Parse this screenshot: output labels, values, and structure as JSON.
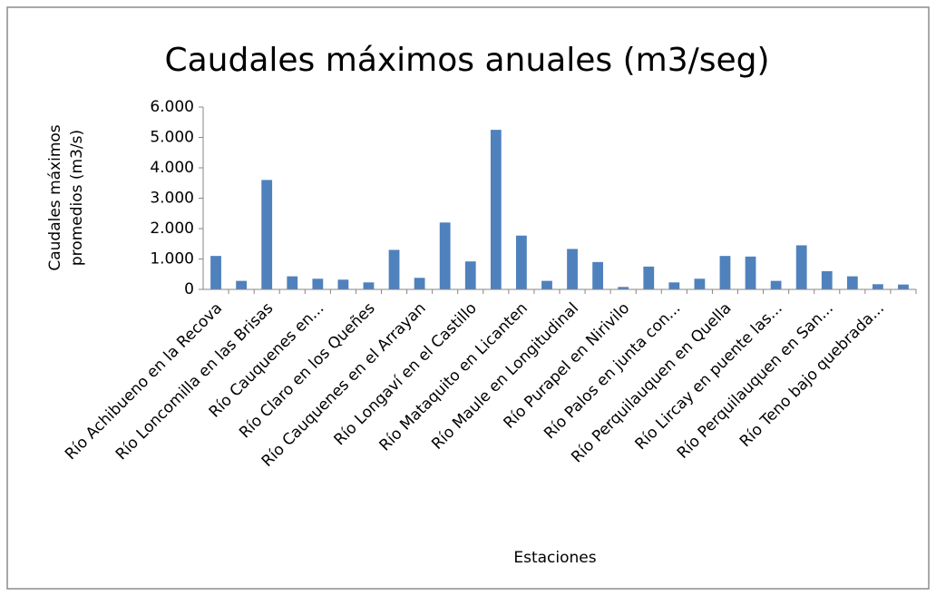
{
  "chart_data": {
    "type": "bar",
    "title": "Caudales máximos anuales (m3/seg)",
    "y_label": [
      "Caudales máximos",
      "promedios (m3/s)"
    ],
    "x_label": "Estaciones",
    "categories": [
      "Río Achibueno en la Recova",
      null,
      "Río Loncomilla en las Brisas",
      null,
      "Río Cauquenes en...",
      null,
      "Río Claro en los Queñes",
      null,
      "Río Cauquenes en el Arrayan",
      null,
      "Río Longaví en el Castillo",
      null,
      "Río Mataquito en Licanten",
      null,
      "Río Maule en Longitudinal",
      null,
      "Río Purapel en Nirivilo",
      null,
      "Río Palos en junta con...",
      null,
      "Río Perquilauquen en Quella",
      null,
      "Río Lircay en puente las...",
      null,
      "Río Perquilauquen en San...",
      null,
      "Río Teno bajo quebrada...",
      null
    ],
    "values": [
      1100,
      280,
      3600,
      430,
      350,
      320,
      230,
      1300,
      380,
      2200,
      920,
      5250,
      1770,
      280,
      1330,
      900,
      80,
      750,
      230,
      350,
      1100,
      1080,
      280,
      1450,
      600,
      430,
      170,
      160
    ],
    "color": "#4f81bd",
    "ylim": [
      0,
      6000
    ],
    "yticks": [
      0,
      {
        "value": 1000,
        "label": "1.000"
      },
      {
        "value": 2000,
        "label": "2.000"
      },
      {
        "value": 3000,
        "label": "3.000"
      },
      {
        "value": 4000,
        "label": "4.000"
      },
      {
        "value": 5000,
        "label": "5.000"
      },
      {
        "value": 6000,
        "label": "6.000"
      }
    ],
    "grid": false
  }
}
